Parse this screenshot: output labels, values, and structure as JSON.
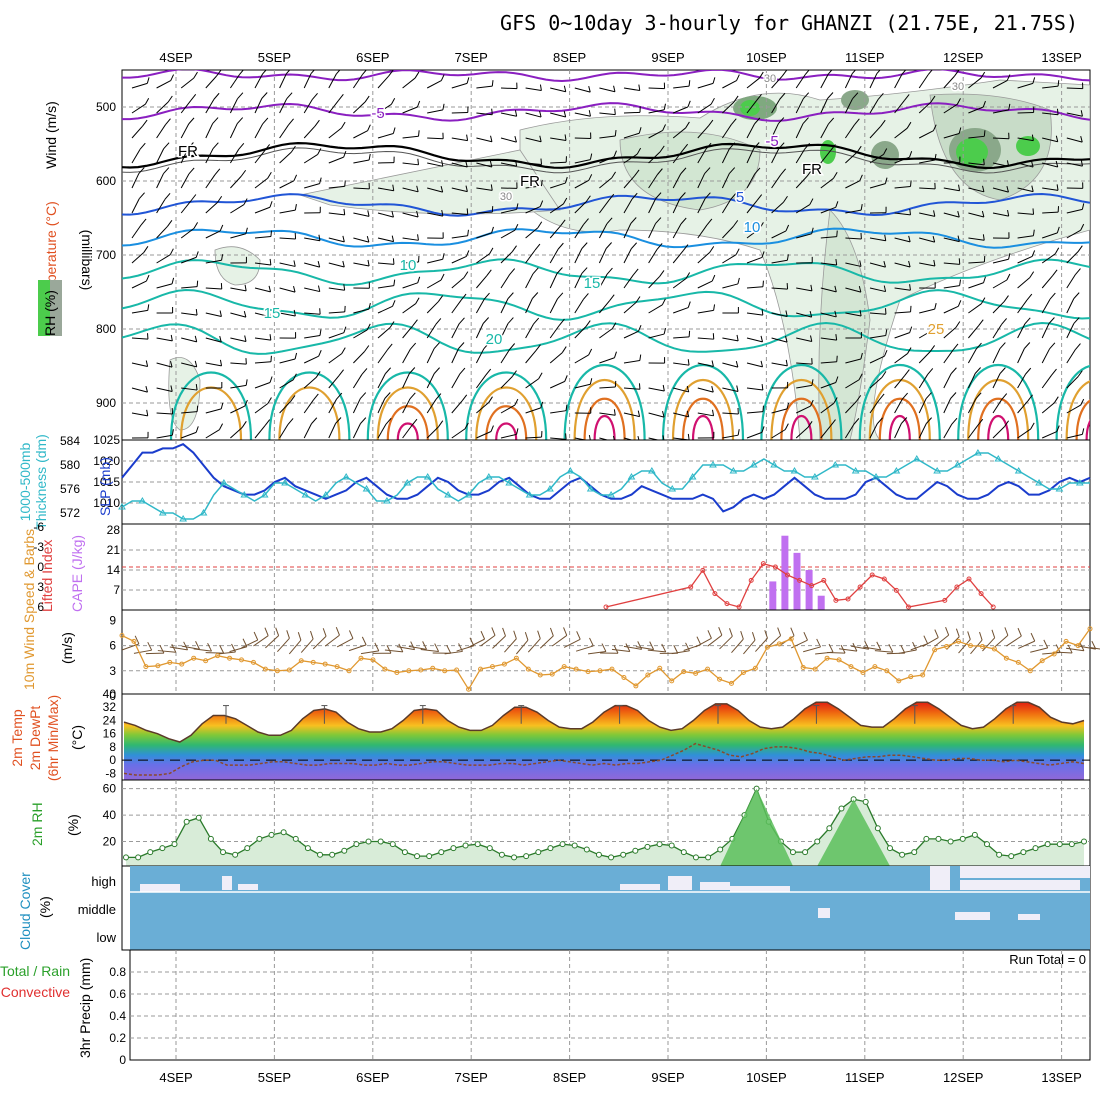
{
  "title": "GFS 0~10day 3-hourly for GHANZI (21.75E, 21.75S)",
  "dates": [
    "4SEP",
    "5SEP",
    "6SEP",
    "7SEP",
    "8SEP",
    "9SEP",
    "10SEP",
    "11SEP",
    "12SEP",
    "13SEP"
  ],
  "colors": {
    "temp_purple": "#8a1fc0",
    "temp_blue": "#2155d6",
    "temp_lightblue": "#1a8fe0",
    "temp_teal": "#18b8a8",
    "temp_orange": "#e0a030",
    "temp_darkorange": "#e07020",
    "temp_magenta": "#d01070",
    "rh_green": "#4ccc4c",
    "slp": "#1a3ccc",
    "thickness": "#30b8c8",
    "cape": "#c070f0",
    "lifted_index": "#e04040",
    "wind_speed": "#e09830",
    "barb": "#705030",
    "cloud": "#6aaed6"
  },
  "chart_data": [
    {
      "panel": "upper_air",
      "type": "heatmap",
      "ylabel_parts": [
        "Wind (m/s)",
        "Temperature (°C)",
        "RH (%)"
      ],
      "yunit": "(millibars)",
      "ylim": [
        950,
        450
      ],
      "yticks": [
        "500",
        "600",
        "700",
        "800",
        "900"
      ],
      "contour_labels": [
        {
          "text": "-5",
          "color": "temp_purple"
        },
        {
          "text": "-5",
          "color": "temp_purple"
        },
        {
          "text": "FR",
          "color": "black"
        },
        {
          "text": "FR",
          "color": "black"
        },
        {
          "text": "FR",
          "color": "black"
        },
        {
          "text": "5",
          "color": "temp_blue"
        },
        {
          "text": "10",
          "color": "temp_lightblue"
        },
        {
          "text": "10",
          "color": "temp_teal"
        },
        {
          "text": "15",
          "color": "temp_teal"
        },
        {
          "text": "15",
          "color": "temp_teal"
        },
        {
          "text": "20",
          "color": "temp_teal"
        },
        {
          "text": "25",
          "color": "temp_orange"
        },
        {
          "text": "30",
          "color": "gray"
        },
        {
          "text": "30",
          "color": "gray"
        },
        {
          "text": "30",
          "color": "gray"
        }
      ]
    },
    {
      "panel": "slp_thickness",
      "type": "line",
      "ylabel_left": [
        "1000-500mb",
        "Thickness (dm)"
      ],
      "ylabel_right": "SLP (mb)",
      "yticks_left": [
        "584",
        "580",
        "576",
        "572"
      ],
      "yticks_right": [
        "1025",
        "1020",
        "1015",
        "1010"
      ],
      "ylim_slp": [
        1005,
        1025
      ],
      "ylim_thickness": [
        570,
        584
      ],
      "series": [
        {
          "name": "SLP",
          "axis": "right",
          "values": [
            1016,
            1019,
            1022,
            1022,
            1023,
            1023,
            1024,
            1022,
            1019,
            1016,
            1014,
            1013,
            1012,
            1012,
            1013,
            1015,
            1016,
            1014,
            1013,
            1012,
            1011,
            1012,
            1013,
            1015,
            1016,
            1014,
            1012,
            1011,
            1011,
            1012,
            1014,
            1016,
            1015,
            1013,
            1012,
            1012,
            1013,
            1015,
            1016,
            1014,
            1012,
            1011,
            1011,
            1013,
            1015,
            1016,
            1014,
            1012,
            1011,
            1011,
            1012,
            1014,
            1013,
            1012,
            1011,
            1011,
            1011,
            1012,
            1011,
            1008,
            1009,
            1011,
            1012,
            1011,
            1012,
            1014,
            1016,
            1014,
            1012,
            1011,
            1011,
            1011,
            1012,
            1015,
            1016,
            1014,
            1012,
            1011,
            1011,
            1013,
            1015,
            1014,
            1012,
            1011,
            1011,
            1012,
            1014,
            1015,
            1014,
            1012,
            1012,
            1013,
            1015,
            1016,
            1015,
            1016
          ]
        },
        {
          "name": "1000-500mb Thickness",
          "axis": "left",
          "values": [
            573,
            574,
            574,
            573,
            572,
            572,
            571,
            571,
            572,
            575,
            577,
            576,
            575,
            574,
            575,
            577,
            577,
            576,
            575,
            574,
            575,
            577,
            578,
            577,
            576,
            574,
            574,
            575,
            577,
            578,
            578,
            576,
            575,
            574,
            575,
            577,
            578,
            578,
            577,
            576,
            575,
            575,
            576,
            578,
            579,
            578,
            576,
            575,
            575,
            576,
            578,
            579,
            579,
            577,
            576,
            576,
            578,
            580,
            580,
            580,
            579,
            579,
            580,
            581,
            580,
            579,
            579,
            578,
            578,
            579,
            580,
            580,
            579,
            579,
            578,
            578,
            579,
            580,
            581,
            580,
            579,
            579,
            580,
            581,
            582,
            582,
            581,
            580,
            579,
            578,
            577,
            576,
            576,
            577,
            577,
            577
          ]
        }
      ]
    },
    {
      "panel": "cape_li",
      "type": "bar",
      "ylabel_left": "Lifted Index",
      "ylabel_right": "CAPE (J/kg)",
      "yticks_li": [
        "-6",
        "-3",
        "0",
        "3",
        "6"
      ],
      "yticks_cape": [
        "28",
        "21",
        "14",
        "7"
      ],
      "ylim_cape": [
        0,
        28
      ],
      "ylim_li": [
        6,
        -6
      ],
      "cape_values": [
        {
          "x": 53,
          "v": 10
        },
        {
          "x": 54,
          "v": 26
        },
        {
          "x": 55,
          "v": 20
        },
        {
          "x": 56,
          "v": 14
        },
        {
          "x": 57,
          "v": 5
        }
      ],
      "li_values": [
        {
          "x": 40,
          "v": 6
        },
        {
          "x": 47,
          "v": 3
        },
        {
          "x": 48,
          "v": 0.5
        },
        {
          "x": 49,
          "v": 4
        },
        {
          "x": 50,
          "v": 5.5
        },
        {
          "x": 51,
          "v": 6
        },
        {
          "x": 52,
          "v": 2
        },
        {
          "x": 53,
          "v": -0.5
        },
        {
          "x": 54,
          "v": 0
        },
        {
          "x": 55,
          "v": 1.2
        },
        {
          "x": 56,
          "v": 2
        },
        {
          "x": 57,
          "v": 2.8
        },
        {
          "x": 58,
          "v": 2
        },
        {
          "x": 59,
          "v": 5
        },
        {
          "x": 60,
          "v": 4.8
        },
        {
          "x": 61,
          "v": 3
        },
        {
          "x": 62,
          "v": 1.2
        },
        {
          "x": 63,
          "v": 1.8
        },
        {
          "x": 64,
          "v": 3.5
        },
        {
          "x": 65,
          "v": 6
        },
        {
          "x": 68,
          "v": 5
        },
        {
          "x": 69,
          "v": 3
        },
        {
          "x": 70,
          "v": 1.8
        },
        {
          "x": 71,
          "v": 4
        },
        {
          "x": 72,
          "v": 6
        }
      ]
    },
    {
      "panel": "wind10m",
      "type": "line",
      "ylabel": "10m Wind Speed & Barbs",
      "yunit": "(m/s)",
      "yticks": [
        "9",
        "6",
        "3",
        "0"
      ],
      "ylim": [
        0,
        10
      ],
      "values": [
        7.2,
        6.5,
        3.5,
        3.6,
        4.0,
        3.8,
        4.5,
        4.2,
        4.8,
        4.5,
        4.3,
        4.0,
        3.2,
        3.0,
        3.1,
        4.2,
        4.0,
        3.8,
        3.5,
        3.0,
        4.5,
        4.3,
        3.2,
        2.8,
        3.0,
        3.1,
        3.3,
        3.0,
        3.1,
        0.8,
        3.2,
        3.5,
        3.8,
        4.5,
        3.2,
        2.5,
        2.6,
        3.5,
        3.2,
        2.9,
        3.0,
        3.2,
        2.2,
        1.2,
        2.5,
        3.3,
        1.8,
        2.9,
        2.7,
        3.2,
        2.0,
        1.5,
        2.8,
        3.3,
        5.8,
        6.2,
        6.8,
        3.4,
        3.2,
        4.5,
        4.3,
        3.5,
        2.8,
        3.5,
        3.0,
        1.8,
        2.3,
        2.5,
        5.5,
        5.9,
        6.5,
        6.0,
        5.9,
        5.6,
        4.5,
        4.0,
        3.0,
        4.2,
        5.0,
        6.5,
        6.0,
        8.0
      ]
    },
    {
      "panel": "temp2m",
      "type": "area",
      "ylabel": [
        "2m Temp",
        "2m DewPt",
        "(6hr Min/Max)"
      ],
      "yunit": "(°C)",
      "yticks": [
        "40",
        "32",
        "24",
        "16",
        "8",
        "0",
        "-8"
      ],
      "ylim": [
        -12,
        40
      ],
      "temp_values": [
        23,
        21,
        18,
        16,
        13,
        11,
        15,
        22,
        27,
        27,
        25,
        21,
        17,
        15,
        15,
        18,
        25,
        30,
        31,
        29,
        23,
        19,
        17,
        17,
        19,
        24,
        30,
        31,
        30,
        24,
        20,
        18,
        18,
        21,
        27,
        32,
        32,
        29,
        24,
        20,
        19,
        19,
        23,
        29,
        33,
        33,
        30,
        24,
        20,
        18,
        19,
        24,
        30,
        34,
        34,
        30,
        24,
        20,
        19,
        20,
        25,
        31,
        35,
        35,
        31,
        26,
        21,
        20,
        20,
        25,
        31,
        35,
        35,
        31,
        26,
        21,
        19,
        20,
        25,
        31,
        35,
        35,
        32,
        26,
        23,
        22,
        24
      ],
      "dew_values": [
        -8,
        -9,
        -9,
        -9,
        -8,
        -4,
        -1,
        0,
        0,
        -3,
        -3,
        -3,
        -2,
        -1,
        -1,
        -2,
        -3,
        -3,
        -2,
        -2,
        -2,
        -3,
        -3,
        -2,
        -3,
        -3,
        -2,
        -1,
        -1,
        -2,
        -3,
        -3,
        -3,
        -2,
        -2,
        -3,
        -2,
        -1,
        0,
        -1,
        -2,
        -3,
        -2,
        -3,
        -2,
        -2,
        -1,
        0,
        3,
        6,
        10,
        8,
        6,
        3,
        2,
        4,
        7,
        8,
        8,
        7,
        5,
        4,
        2,
        0,
        1,
        2,
        2,
        3,
        3,
        2,
        1,
        0,
        0,
        1,
        1,
        0,
        0,
        -1,
        0,
        -1,
        -2,
        -3,
        -2,
        -1,
        -2
      ]
    },
    {
      "panel": "rh2m",
      "type": "area",
      "ylabel": "2m RH",
      "yunit": "(%)",
      "yticks": [
        "60",
        "40",
        "20"
      ],
      "ylim": [
        0,
        65
      ],
      "values": [
        8,
        8,
        12,
        15,
        18,
        35,
        38,
        22,
        12,
        10,
        15,
        22,
        25,
        27,
        22,
        15,
        10,
        10,
        13,
        18,
        20,
        20,
        18,
        12,
        9,
        9,
        12,
        15,
        17,
        18,
        15,
        10,
        8,
        9,
        12,
        15,
        18,
        17,
        14,
        10,
        8,
        10,
        13,
        16,
        18,
        17,
        12,
        8,
        8,
        14,
        22,
        40,
        60,
        35,
        20,
        12,
        12,
        20,
        30,
        45,
        52,
        50,
        30,
        15,
        10,
        12,
        22,
        22,
        20,
        22,
        25,
        18,
        10,
        9,
        12,
        15,
        18,
        18,
        18,
        20
      ]
    },
    {
      "panel": "cloud",
      "type": "bar",
      "ylabel": "Cloud Cover",
      "yunit": "(%)",
      "level_labels": [
        "high",
        "middle",
        "low"
      ]
    },
    {
      "panel": "precip",
      "type": "bar",
      "ylabel_green": "Total / Rain",
      "ylabel_red": "Convective",
      "ylabel_black": "3hr Precip (mm)",
      "yticks": [
        "0.8",
        "0.6",
        "0.4",
        "0.2",
        "0"
      ],
      "ylim": [
        0,
        1
      ],
      "run_total": "Run Total = 0",
      "values": []
    }
  ]
}
